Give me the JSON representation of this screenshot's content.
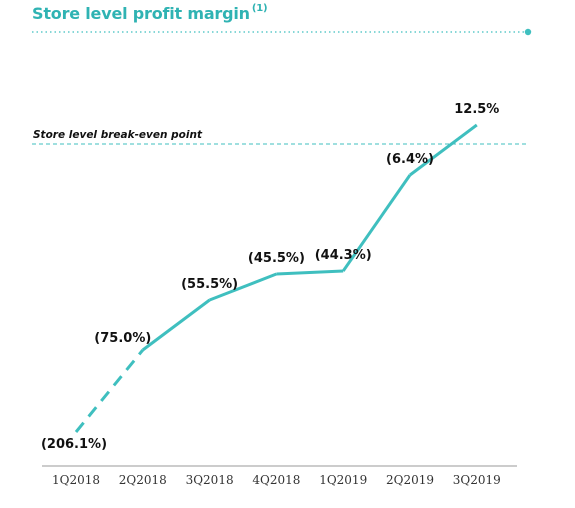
{
  "header": {
    "title": "Store level profit margin",
    "footnote_marker": "(1)"
  },
  "colors": {
    "accent": "#3fbfbf",
    "title": "#2fb3b3",
    "text": "#111111",
    "axis": "#999999"
  },
  "chart_data": {
    "type": "line",
    "title": "Store level profit margin",
    "xlabel": "",
    "ylabel": "",
    "categories": [
      "1Q2018",
      "2Q2018",
      "3Q2018",
      "4Q2018",
      "1Q2019",
      "2Q2019",
      "3Q2019"
    ],
    "series": [
      {
        "values": [
          -206.1,
          -75.0,
          -55.5,
          -45.5,
          -44.3,
          -6.4,
          12.5
        ],
        "labels": [
          "(206.1%)",
          "(75.0%)",
          "(55.5%)",
          "(45.5%)",
          "(44.3%)",
          "(6.4%)",
          "12.5%"
        ],
        "dashed_segments": [
          0
        ]
      }
    ],
    "reference_line": {
      "label": "Store level break-even point",
      "value": 0,
      "style": "dashed"
    },
    "grid": false,
    "y_scale": "non-linear"
  }
}
